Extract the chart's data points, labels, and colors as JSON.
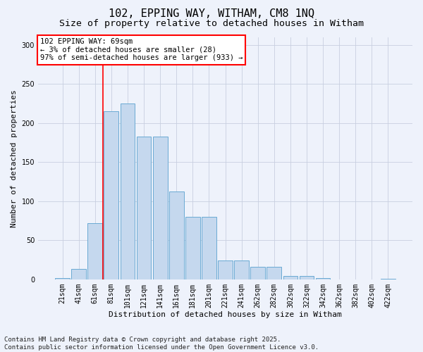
{
  "title1": "102, EPPING WAY, WITHAM, CM8 1NQ",
  "title2": "Size of property relative to detached houses in Witham",
  "xlabel": "Distribution of detached houses by size in Witham",
  "ylabel": "Number of detached properties",
  "categories": [
    "21sqm",
    "41sqm",
    "61sqm",
    "81sqm",
    "101sqm",
    "121sqm",
    "141sqm",
    "161sqm",
    "181sqm",
    "201sqm",
    "221sqm",
    "241sqm",
    "262sqm",
    "282sqm",
    "302sqm",
    "322sqm",
    "342sqm",
    "362sqm",
    "382sqm",
    "402sqm",
    "422sqm"
  ],
  "values": [
    2,
    13,
    72,
    215,
    225,
    183,
    183,
    112,
    80,
    80,
    24,
    24,
    16,
    16,
    4,
    4,
    2,
    0,
    0,
    0,
    1
  ],
  "bar_color": "#c5d8ee",
  "bar_edge_color": "#6aaad4",
  "vline_x": 2.5,
  "vline_color": "red",
  "annotation_text": "102 EPPING WAY: 69sqm\n← 3% of detached houses are smaller (28)\n97% of semi-detached houses are larger (933) →",
  "annotation_box_color": "white",
  "annotation_box_edge": "red",
  "ylim": [
    0,
    310
  ],
  "yticks": [
    0,
    50,
    100,
    150,
    200,
    250,
    300
  ],
  "footer": "Contains HM Land Registry data © Crown copyright and database right 2025.\nContains public sector information licensed under the Open Government Licence v3.0.",
  "bg_color": "#eef2fb",
  "grid_color": "#c8cfe0",
  "title_fontsize": 11,
  "subtitle_fontsize": 9.5,
  "axis_label_fontsize": 8,
  "tick_fontsize": 7,
  "footer_fontsize": 6.5,
  "annotation_fontsize": 7.5
}
